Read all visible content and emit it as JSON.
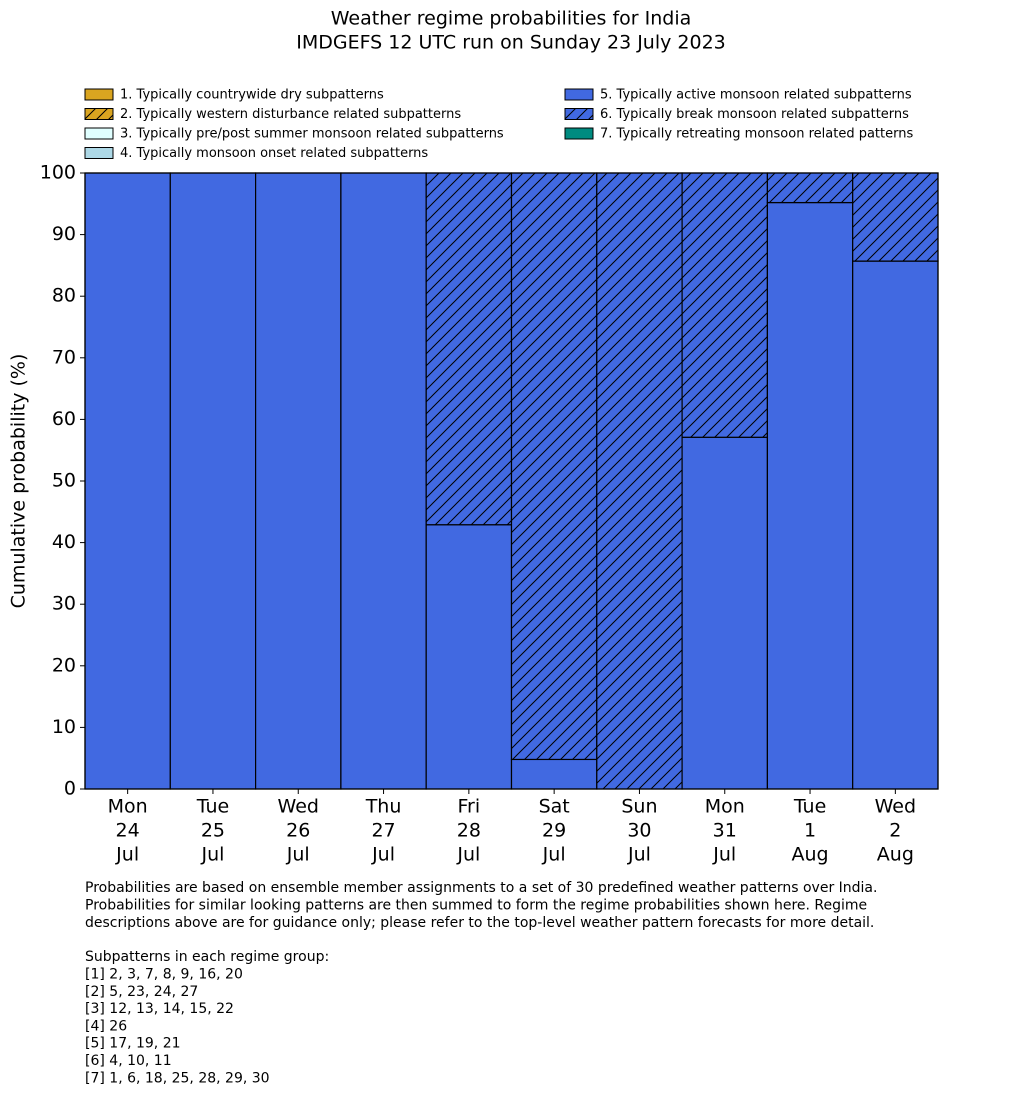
{
  "chart_data": {
    "type": "stacked-bar",
    "title": "Weather regime probabilities for India",
    "subtitle": "IMDGEFS 12 UTC run on Sunday 23 July 2023",
    "ylabel": "Cumulative probability (%)",
    "categories": [
      [
        "Mon",
        "24",
        "Jul"
      ],
      [
        "Tue",
        "25",
        "Jul"
      ],
      [
        "Wed",
        "26",
        "Jul"
      ],
      [
        "Thu",
        "27",
        "Jul"
      ],
      [
        "Fri",
        "28",
        "Jul"
      ],
      [
        "Sat",
        "29",
        "Jul"
      ],
      [
        "Sun",
        "30",
        "Jul"
      ],
      [
        "Mon",
        "31",
        "Jul"
      ],
      [
        "Tue",
        "1",
        "Aug"
      ],
      [
        "Wed",
        "2",
        "Aug"
      ]
    ],
    "series": [
      {
        "name": "1. Typically countrywide dry subpatterns",
        "color": "#daa520",
        "hatch": false,
        "values": [
          0,
          0,
          0,
          0,
          0,
          0,
          0,
          0,
          0,
          0
        ]
      },
      {
        "name": "2. Typically western disturbance related subpatterns",
        "color": "#daa520",
        "hatch": true,
        "values": [
          0,
          0,
          0,
          0,
          0,
          0,
          0,
          0,
          0,
          0
        ]
      },
      {
        "name": "3. Typically pre/post summer monsoon related subpatterns",
        "color": "#e0ffff",
        "hatch": false,
        "values": [
          0,
          0,
          0,
          0,
          0,
          0,
          0,
          0,
          0,
          0
        ]
      },
      {
        "name": "4. Typically monsoon onset related subpatterns",
        "color": "#add8e6",
        "hatch": false,
        "values": [
          0,
          0,
          0,
          0,
          0,
          0,
          0,
          0,
          0,
          0
        ]
      },
      {
        "name": "5. Typically active monsoon related subpatterns",
        "color": "#4169e1",
        "hatch": false,
        "values": [
          100,
          100,
          100,
          100,
          42.9,
          4.8,
          0,
          57.1,
          95.2,
          85.7
        ]
      },
      {
        "name": "6. Typically break monsoon related subpatterns",
        "color": "#4169e1",
        "hatch": true,
        "values": [
          0,
          0,
          0,
          0,
          57.1,
          95.2,
          100,
          42.9,
          4.8,
          14.3
        ]
      },
      {
        "name": "7. Typically retreating monsoon related patterns",
        "color": "#008b80",
        "hatch": false,
        "values": [
          0,
          0,
          0,
          0,
          0,
          0,
          0,
          0,
          0,
          0
        ]
      }
    ],
    "ylim": [
      0,
      100
    ],
    "yticks": [
      0,
      10,
      20,
      30,
      40,
      50,
      60,
      70,
      80,
      90,
      100
    ],
    "grid": false,
    "notes": [
      "Probabilities are based on ensemble member assignments to a set of 30 predefined weather patterns over India.",
      "Probabilities for similar looking patterns are then summed to form the regime probabilities shown here. Regime",
      "descriptions above are for guidance only; please refer to the top-level weather pattern forecasts for more detail."
    ],
    "subpatterns_heading": "Subpatterns in each regime group:",
    "subpatterns": [
      "[1] 2, 3, 7, 8, 9, 16, 20",
      "[2] 5, 23, 24, 27",
      "[3] 12, 13, 14, 15, 22",
      "[4] 26",
      "[5] 17, 19, 21",
      "[6] 4, 10, 11",
      "[7] 1, 6, 18, 25, 28, 29, 30"
    ]
  }
}
